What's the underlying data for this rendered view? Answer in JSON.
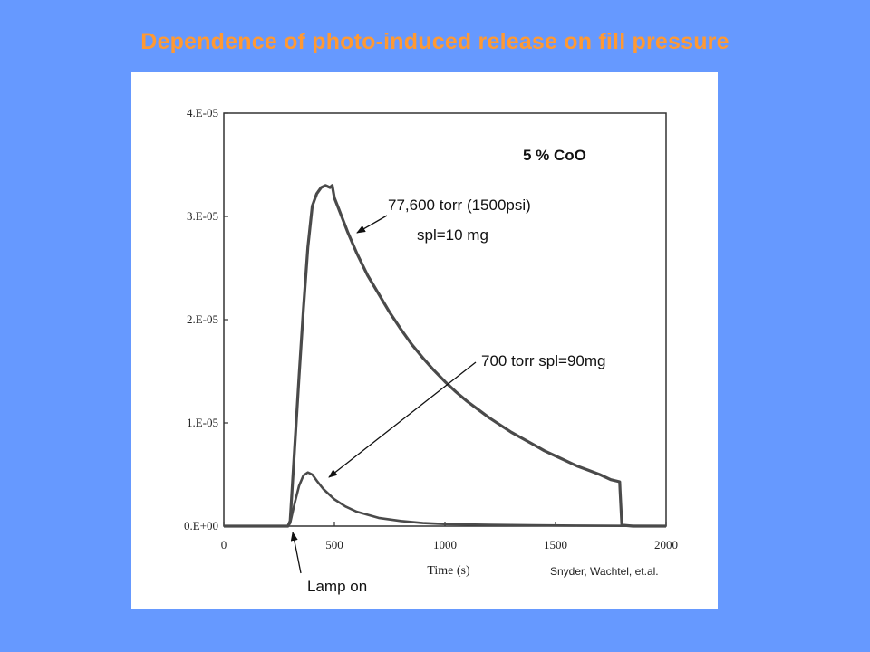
{
  "slide": {
    "title": "Dependence of photo-induced release on fill pressure"
  },
  "colors": {
    "background": "#6699ff",
    "title": "#ff9933",
    "line": "#4a4a4a"
  },
  "chart_data": {
    "type": "line",
    "title": "",
    "xlabel": "Time (s)",
    "ylabel": "",
    "xlim": [
      0,
      2000
    ],
    "ylim": [
      0,
      4e-05
    ],
    "x_ticks": [
      0,
      500,
      1000,
      1500,
      2000
    ],
    "x_tick_labels": [
      "0",
      "500",
      "1000",
      "1500",
      "2000"
    ],
    "y_ticks": [
      0,
      1e-05,
      2e-05,
      3e-05,
      4e-05
    ],
    "y_tick_labels": [
      "0.E+00",
      "1.E-05",
      "2.E-05",
      "3.E-05",
      "4.E-05"
    ],
    "grid": false,
    "legend": "none",
    "series": [
      {
        "x": [
          0,
          290,
          300,
          320,
          340,
          360,
          380,
          400,
          420,
          440,
          460,
          480,
          490,
          500,
          520,
          560,
          600,
          650,
          700,
          750,
          800,
          850,
          900,
          950,
          1000,
          1050,
          1100,
          1150,
          1200,
          1250,
          1300,
          1350,
          1400,
          1450,
          1500,
          1550,
          1600,
          1650,
          1700,
          1750,
          1790,
          1792,
          1800,
          1850,
          2000
        ],
        "y": [
          0,
          0,
          5e-07,
          7.5e-06,
          1.45e-05,
          2.1e-05,
          2.7e-05,
          3.1e-05,
          3.22e-05,
          3.28e-05,
          3.3e-05,
          3.28e-05,
          3.3e-05,
          3.18e-05,
          3.07e-05,
          2.85e-05,
          2.65e-05,
          2.43e-05,
          2.25e-05,
          2.07e-05,
          1.91e-05,
          1.76e-05,
          1.63e-05,
          1.51e-05,
          1.4e-05,
          1.3e-05,
          1.21e-05,
          1.13e-05,
          1.05e-05,
          9.8e-06,
          9.1e-06,
          8.5e-06,
          7.9e-06,
          7.3e-06,
          6.8e-06,
          6.3e-06,
          5.8e-06,
          5.4e-06,
          5e-06,
          4.5e-06,
          4.3e-06,
          3.5e-06,
          1e-07,
          0,
          0
        ]
      },
      {
        "x": [
          0,
          290,
          300,
          320,
          340,
          360,
          380,
          400,
          420,
          450,
          500,
          550,
          600,
          700,
          800,
          900,
          1000,
          1200,
          1400,
          1600,
          1800,
          2000
        ],
        "y": [
          0,
          0,
          3e-07,
          2.2e-06,
          3.9e-06,
          4.9e-06,
          5.2e-06,
          5e-06,
          4.4e-06,
          3.6e-06,
          2.6e-06,
          1.9e-06,
          1.4e-06,
          8e-07,
          5e-07,
          3e-07,
          2e-07,
          1.2e-07,
          8e-08,
          5e-08,
          3e-08,
          2e-08
        ]
      }
    ],
    "annotations": {
      "sample": "5 % CoO",
      "high_pressure_line1": "77,600 torr (1500psi)",
      "high_pressure_line2": "spl=10 mg",
      "low_pressure": "700 torr spl=90mg",
      "lamp": "Lamp on"
    },
    "credit": "Snyder, Wachtel, et.al."
  }
}
